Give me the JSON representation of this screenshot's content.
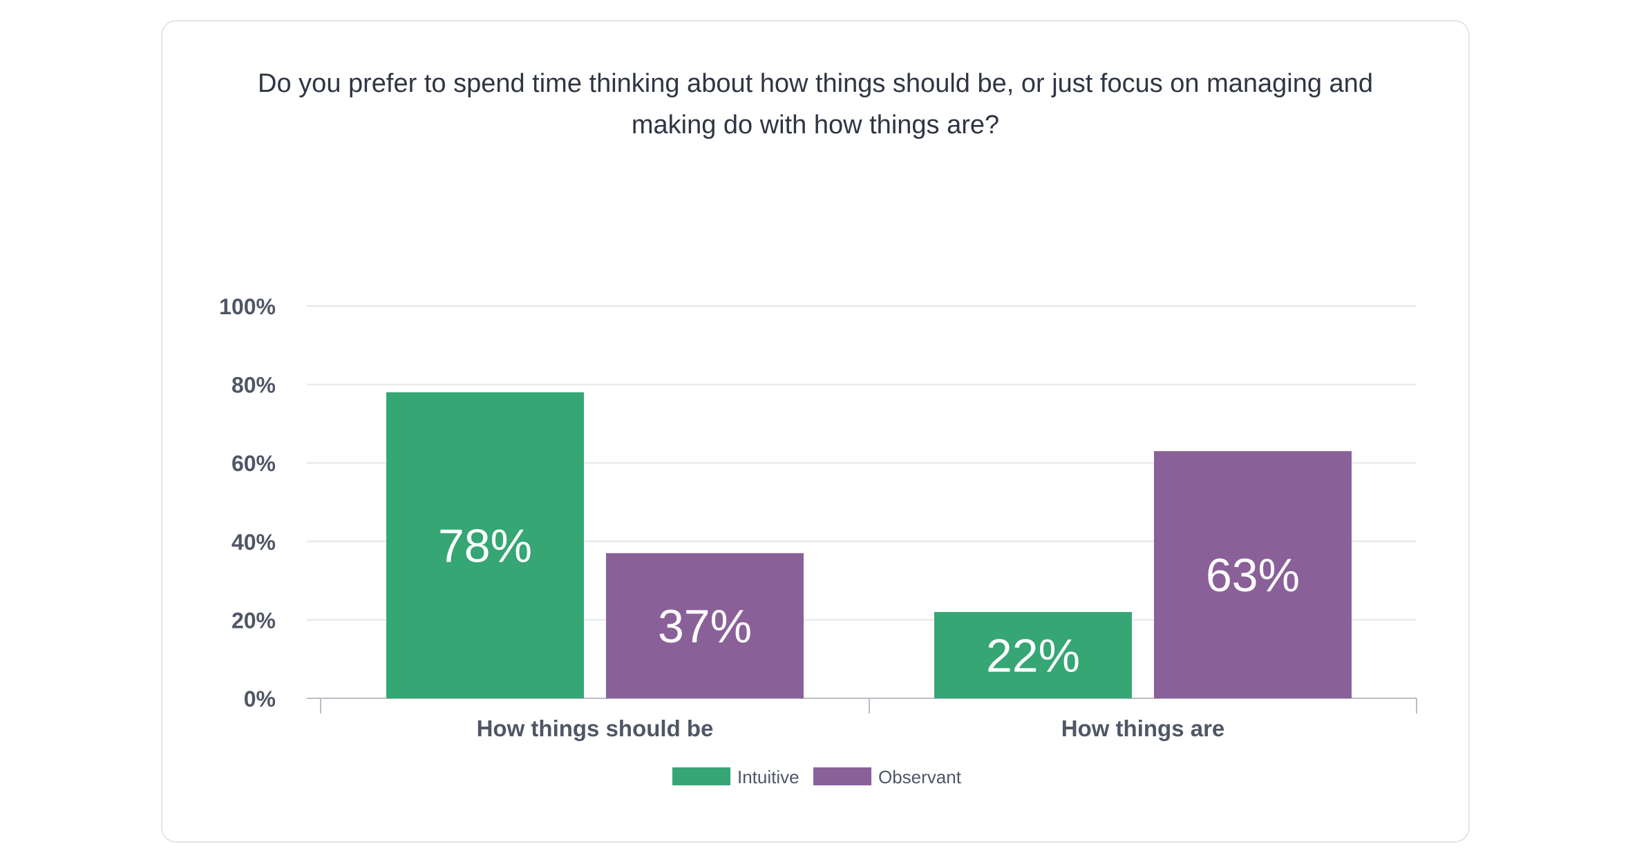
{
  "chart_data": {
    "type": "bar",
    "title_lines": [
      "Do you prefer to spend time thinking about how things should be, or just focus on managing and",
      "making do with how things are?"
    ],
    "categories": [
      "How things should be",
      "How things are"
    ],
    "series": [
      {
        "name": "Intuitive",
        "color": "#35a674",
        "values": [
          78,
          22
        ]
      },
      {
        "name": "Observant",
        "color": "#8a6099",
        "values": [
          37,
          63
        ]
      }
    ],
    "data_labels": [
      [
        "78%",
        "22%"
      ],
      [
        "37%",
        "63%"
      ]
    ],
    "yticks": [
      "0%",
      "20%",
      "40%",
      "60%",
      "80%",
      "100%"
    ],
    "ytick_values": [
      0,
      20,
      40,
      60,
      80,
      100
    ],
    "ylim": [
      0,
      100
    ],
    "xlabel": "",
    "ylabel": "",
    "grid": true,
    "legend": "bottom-center"
  }
}
